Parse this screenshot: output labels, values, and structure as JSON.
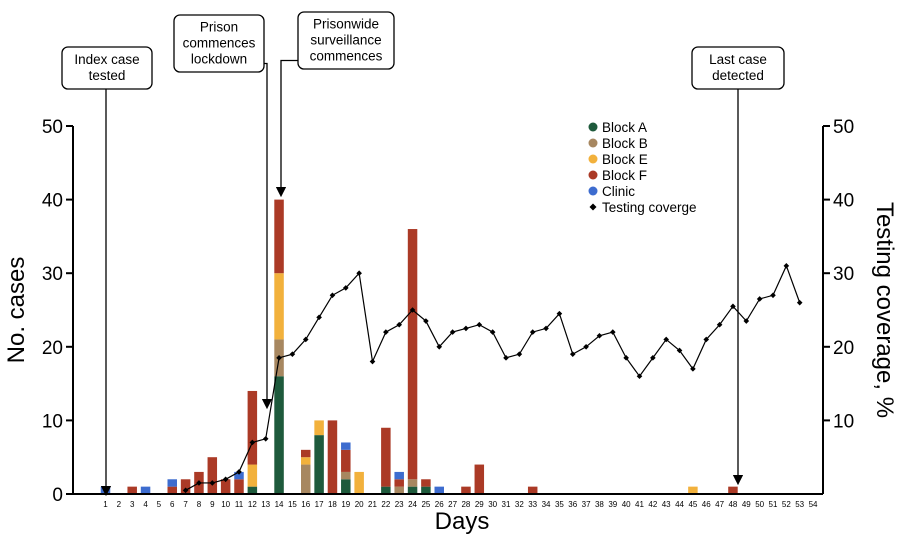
{
  "chart_data": {
    "type": "bar",
    "xlabel": "Days",
    "ylabel": "No. cases",
    "y2label": "Testing coverage, %",
    "ylim": [
      0,
      50
    ],
    "y2lim": [
      0,
      50
    ],
    "yticks": [
      0,
      10,
      20,
      30,
      40,
      50
    ],
    "y2ticks": [
      10,
      20,
      30,
      40,
      50
    ],
    "days": [
      1,
      2,
      3,
      4,
      5,
      6,
      7,
      8,
      9,
      10,
      11,
      12,
      13,
      14,
      15,
      16,
      17,
      18,
      19,
      20,
      21,
      22,
      23,
      24,
      25,
      26,
      27,
      28,
      29,
      30,
      31,
      32,
      33,
      34,
      35,
      36,
      37,
      38,
      39,
      40,
      41,
      42,
      43,
      44,
      45,
      46,
      47,
      48,
      49,
      50,
      51,
      52,
      53,
      54
    ],
    "legend_position": "top-right",
    "series": [
      {
        "name": "Block A",
        "color": "#1e5a3c",
        "values": [
          0,
          0,
          0,
          0,
          0,
          0,
          0,
          0,
          0,
          0,
          0,
          1,
          0,
          16,
          0,
          0,
          8,
          0,
          2,
          0,
          0,
          1,
          0,
          1,
          1,
          0,
          0,
          0,
          0,
          0,
          0,
          0,
          0,
          0,
          0,
          0,
          0,
          0,
          0,
          0,
          0,
          0,
          0,
          0,
          0,
          0,
          0,
          0,
          0,
          0,
          0,
          0,
          0,
          0
        ]
      },
      {
        "name": "Block B",
        "color": "#a78760",
        "values": [
          0,
          0,
          0,
          0,
          0,
          0,
          0,
          0,
          0,
          0,
          0,
          0,
          0,
          5,
          0,
          4,
          0,
          0,
          1,
          0,
          0,
          0,
          1,
          1,
          0,
          0,
          0,
          0,
          0,
          0,
          0,
          0,
          0,
          0,
          0,
          0,
          0,
          0,
          0,
          0,
          0,
          0,
          0,
          0,
          0,
          0,
          0,
          0,
          0,
          0,
          0,
          0,
          0,
          0
        ]
      },
      {
        "name": "Block E",
        "color": "#f2b13c",
        "values": [
          0,
          0,
          0,
          0,
          0,
          0,
          0,
          0,
          0,
          0,
          0,
          3,
          0,
          9,
          0,
          1,
          2,
          0,
          0,
          3,
          0,
          0,
          0,
          0,
          0,
          0,
          0,
          0,
          0,
          0,
          0,
          0,
          0,
          0,
          0,
          0,
          0,
          0,
          0,
          0,
          0,
          0,
          0,
          0,
          1,
          0,
          0,
          0,
          0,
          0,
          0,
          0,
          0,
          0
        ]
      },
      {
        "name": "Block F",
        "color": "#ab3a26",
        "values": [
          0,
          0,
          1,
          0,
          0,
          1,
          2,
          3,
          5,
          2,
          2,
          10,
          0,
          10,
          0,
          1,
          0,
          10,
          3,
          0,
          0,
          8,
          1,
          34,
          1,
          0,
          0,
          1,
          4,
          0,
          0,
          0,
          1,
          0,
          0,
          0,
          0,
          0,
          0,
          0,
          0,
          0,
          0,
          0,
          0,
          0,
          0,
          1,
          0,
          0,
          0,
          0,
          0,
          0
        ]
      },
      {
        "name": "Clinic",
        "color": "#3d6ccf",
        "values": [
          1,
          0,
          0,
          1,
          0,
          1,
          0,
          0,
          0,
          0,
          1,
          0,
          0,
          0,
          0,
          0,
          0,
          0,
          1,
          0,
          0,
          0,
          1,
          0,
          0,
          1,
          0,
          0,
          0,
          0,
          0,
          0,
          0,
          0,
          0,
          0,
          0,
          0,
          0,
          0,
          0,
          0,
          0,
          0,
          0,
          0,
          0,
          0,
          0,
          0,
          0,
          0,
          0,
          0
        ]
      }
    ],
    "coverage": {
      "name": "Testing coverge",
      "x": [
        7,
        8,
        9,
        10,
        11,
        12,
        13,
        14,
        15,
        16,
        17,
        18,
        19,
        20,
        21,
        22,
        23,
        24,
        25,
        26,
        27,
        28,
        29,
        30,
        31,
        32,
        33,
        34,
        35,
        36,
        37,
        38,
        39,
        40,
        41,
        42,
        43,
        44,
        45,
        46,
        47,
        48,
        49,
        50,
        51,
        52,
        53
      ],
      "values": [
        0.5,
        1.5,
        1.5,
        2,
        3,
        7,
        7.5,
        18.5,
        19,
        21,
        24,
        27,
        28,
        30,
        18,
        22,
        23,
        25,
        23.5,
        20,
        22,
        22.5,
        23,
        22,
        18.5,
        19,
        22,
        22.5,
        24.5,
        19,
        20,
        21.5,
        22,
        18.5,
        16,
        18.5,
        21,
        19.5,
        17,
        21,
        23,
        25.5,
        23.5,
        26.5,
        27,
        31,
        26
      ]
    },
    "annotations": [
      {
        "text": [
          "Index case",
          "tested"
        ],
        "day": 1
      },
      {
        "text": [
          "Prison",
          "commences",
          "lockdown"
        ],
        "day": 13
      },
      {
        "text": [
          "Prisonwide",
          "surveillance",
          "commences"
        ],
        "day": 14
      },
      {
        "text": [
          "Last case",
          "detected"
        ],
        "day": 48
      }
    ]
  }
}
